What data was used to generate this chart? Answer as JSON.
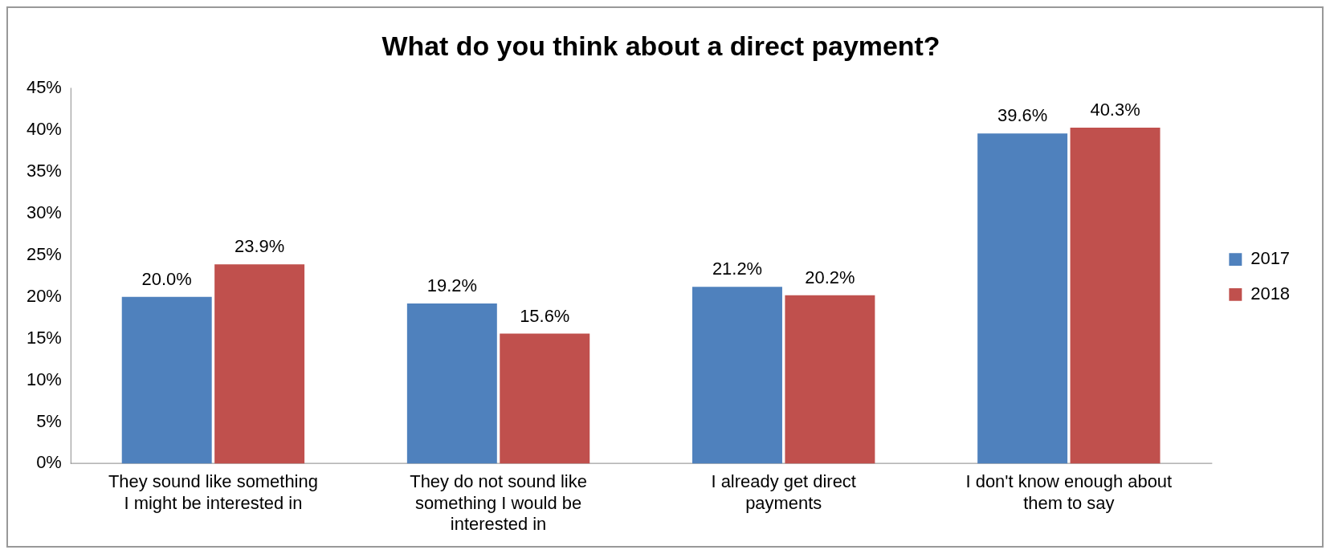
{
  "chart_data": {
    "type": "bar",
    "title": "What do you think about a direct payment?",
    "categories": [
      "They sound like something I might be interested in",
      "They do not sound like something I would be interested in",
      "I already get direct payments",
      "I don't know enough about them to say"
    ],
    "series": [
      {
        "name": "2017",
        "color": "#4f81bd",
        "values": [
          20.0,
          19.2,
          21.2,
          39.6
        ],
        "value_labels": [
          "20.0%",
          "19.2%",
          "21.2%",
          "39.6%"
        ]
      },
      {
        "name": "2018",
        "color": "#c0504d",
        "values": [
          23.9,
          15.6,
          20.2,
          40.3
        ],
        "value_labels": [
          "23.9%",
          "15.6%",
          "20.2%",
          "40.3%"
        ]
      }
    ],
    "ylim": [
      0,
      45
    ],
    "yticks": [
      {
        "value": 0,
        "label": "0%"
      },
      {
        "value": 5,
        "label": "5%"
      },
      {
        "value": 10,
        "label": "10%"
      },
      {
        "value": 15,
        "label": "15%"
      },
      {
        "value": 20,
        "label": "20%"
      },
      {
        "value": 25,
        "label": "25%"
      },
      {
        "value": 30,
        "label": "30%"
      },
      {
        "value": 35,
        "label": "35%"
      },
      {
        "value": 40,
        "label": "40%"
      },
      {
        "value": 45,
        "label": "45%"
      }
    ],
    "legend": "right"
  }
}
